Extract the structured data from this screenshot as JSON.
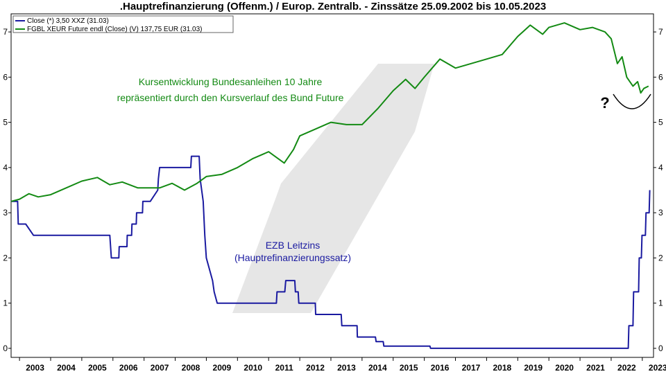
{
  "chart_data": {
    "type": "line",
    "title": ".Hauptrefinanzierung (Offenm.) / Europ. Zentralb. - Zinssätze 25.09.2002 bis 10.05.2023",
    "xlabel": "",
    "ylabel": "",
    "xlim": [
      2002.73,
      2023.36
    ],
    "ylim": [
      -0.2,
      7.4
    ],
    "grid": false,
    "yticks": [
      0,
      1,
      2,
      3,
      4,
      5,
      6,
      7
    ],
    "xticks": [
      "2003",
      "2004",
      "2005",
      "2006",
      "2007",
      "2008",
      "2009",
      "2010",
      "2011",
      "2012",
      "2013",
      "2014",
      "2015",
      "2016",
      "2017",
      "2018",
      "2019",
      "2020",
      "2021",
      "2022",
      "2023"
    ],
    "legend_position": "top-left",
    "series": [
      {
        "name": "Close (*) 3,50 XXZ (31.03)",
        "color": "#1a1aa0",
        "points": [
          [
            2002.73,
            3.25
          ],
          [
            2002.94,
            3.25
          ],
          [
            2002.96,
            2.75
          ],
          [
            2003.2,
            2.75
          ],
          [
            2003.45,
            2.5
          ],
          [
            2005.9,
            2.5
          ],
          [
            2005.95,
            2.0
          ],
          [
            2006.19,
            2.0
          ],
          [
            2006.2,
            2.25
          ],
          [
            2006.45,
            2.25
          ],
          [
            2006.46,
            2.5
          ],
          [
            2006.6,
            2.5
          ],
          [
            2006.61,
            2.75
          ],
          [
            2006.75,
            2.75
          ],
          [
            2006.76,
            3.0
          ],
          [
            2006.95,
            3.0
          ],
          [
            2006.96,
            3.25
          ],
          [
            2007.2,
            3.25
          ],
          [
            2007.44,
            3.5
          ],
          [
            2007.46,
            3.75
          ],
          [
            2007.5,
            4.0
          ],
          [
            2008.5,
            4.0
          ],
          [
            2008.52,
            4.25
          ],
          [
            2008.77,
            4.25
          ],
          [
            2008.8,
            3.75
          ],
          [
            2008.9,
            3.25
          ],
          [
            2008.95,
            2.5
          ],
          [
            2009.0,
            2.0
          ],
          [
            2009.2,
            1.5
          ],
          [
            2009.25,
            1.25
          ],
          [
            2009.35,
            1.0
          ],
          [
            2011.25,
            1.0
          ],
          [
            2011.27,
            1.25
          ],
          [
            2011.52,
            1.25
          ],
          [
            2011.55,
            1.5
          ],
          [
            2011.84,
            1.5
          ],
          [
            2011.86,
            1.25
          ],
          [
            2011.95,
            1.25
          ],
          [
            2011.97,
            1.0
          ],
          [
            2012.5,
            1.0
          ],
          [
            2012.51,
            0.75
          ],
          [
            2013.33,
            0.75
          ],
          [
            2013.35,
            0.5
          ],
          [
            2013.84,
            0.5
          ],
          [
            2013.85,
            0.25
          ],
          [
            2014.43,
            0.25
          ],
          [
            2014.45,
            0.15
          ],
          [
            2014.68,
            0.15
          ],
          [
            2014.7,
            0.05
          ],
          [
            2016.18,
            0.05
          ],
          [
            2016.2,
            0.0
          ],
          [
            2022.55,
            0.0
          ],
          [
            2022.57,
            0.5
          ],
          [
            2022.7,
            0.5
          ],
          [
            2022.72,
            1.25
          ],
          [
            2022.88,
            1.25
          ],
          [
            2022.9,
            2.0
          ],
          [
            2022.97,
            2.0
          ],
          [
            2022.99,
            2.5
          ],
          [
            2023.1,
            2.5
          ],
          [
            2023.12,
            3.0
          ],
          [
            2023.22,
            3.0
          ],
          [
            2023.24,
            3.5
          ]
        ]
      },
      {
        "name": "FGBL XEUR Future endl (Close) (V) 137,75 EUR (31.03)",
        "color": "#138a13",
        "points": [
          [
            2002.73,
            3.25
          ],
          [
            2003.0,
            3.3
          ],
          [
            2003.3,
            3.42
          ],
          [
            2003.6,
            3.35
          ],
          [
            2004.0,
            3.4
          ],
          [
            2004.5,
            3.55
          ],
          [
            2005.0,
            3.7
          ],
          [
            2005.5,
            3.78
          ],
          [
            2005.9,
            3.62
          ],
          [
            2006.3,
            3.68
          ],
          [
            2006.8,
            3.55
          ],
          [
            2007.5,
            3.55
          ],
          [
            2007.9,
            3.65
          ],
          [
            2008.3,
            3.5
          ],
          [
            2008.7,
            3.65
          ],
          [
            2009.0,
            3.8
          ],
          [
            2009.5,
            3.85
          ],
          [
            2010.0,
            4.0
          ],
          [
            2010.5,
            4.2
          ],
          [
            2011.0,
            4.35
          ],
          [
            2011.5,
            4.1
          ],
          [
            2011.8,
            4.4
          ],
          [
            2012.0,
            4.7
          ],
          [
            2012.5,
            4.85
          ],
          [
            2013.0,
            5.0
          ],
          [
            2013.5,
            4.95
          ],
          [
            2014.0,
            4.95
          ],
          [
            2014.5,
            5.3
          ],
          [
            2015.0,
            5.7
          ],
          [
            2015.4,
            5.95
          ],
          [
            2015.7,
            5.75
          ],
          [
            2016.0,
            6.0
          ],
          [
            2016.5,
            6.4
          ],
          [
            2017.0,
            6.2
          ],
          [
            2017.5,
            6.3
          ],
          [
            2018.0,
            6.4
          ],
          [
            2018.5,
            6.5
          ],
          [
            2019.0,
            6.9
          ],
          [
            2019.4,
            7.15
          ],
          [
            2019.8,
            6.95
          ],
          [
            2020.0,
            7.1
          ],
          [
            2020.5,
            7.2
          ],
          [
            2021.0,
            7.05
          ],
          [
            2021.4,
            7.1
          ],
          [
            2021.8,
            7.0
          ],
          [
            2022.0,
            6.85
          ],
          [
            2022.2,
            6.3
          ],
          [
            2022.35,
            6.45
          ],
          [
            2022.5,
            6.0
          ],
          [
            2022.7,
            5.8
          ],
          [
            2022.85,
            5.9
          ],
          [
            2022.95,
            5.65
          ],
          [
            2023.05,
            5.75
          ],
          [
            2023.2,
            5.8
          ]
        ]
      }
    ],
    "annotations": {
      "green_line1": "Kursentwicklung Bundesanleihen 10 Jahre",
      "green_line2": "repräsentiert durch den Kursverlauf des Bund Future",
      "blue_line1": "EZB Leitzins",
      "blue_line2": "(Hauptrefinanzierungssatz)",
      "question_mark": "?"
    }
  }
}
